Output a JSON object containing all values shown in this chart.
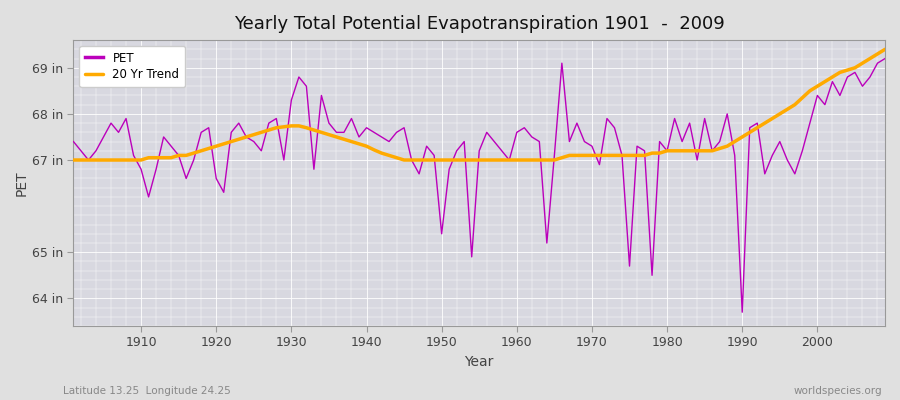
{
  "title": "Yearly Total Potential Evapotranspiration 1901  -  2009",
  "xlabel": "Year",
  "ylabel": "PET",
  "footnote_left": "Latitude 13.25  Longitude 24.25",
  "footnote_right": "worldspecies.org",
  "fig_bg_color": "#e0e0e0",
  "plot_bg_color": "#d8d8e0",
  "pet_color": "#bb00bb",
  "trend_color": "#ffaa00",
  "ylim": [
    63.4,
    69.6
  ],
  "yticks": [
    64,
    65,
    67,
    68,
    69
  ],
  "ytick_labels": [
    "64 in",
    "65 in",
    "67 in",
    "68 in",
    "69 in"
  ],
  "xticks": [
    1910,
    1920,
    1930,
    1940,
    1950,
    1960,
    1970,
    1980,
    1990,
    2000
  ],
  "years": [
    1901,
    1902,
    1903,
    1904,
    1905,
    1906,
    1907,
    1908,
    1909,
    1910,
    1911,
    1912,
    1913,
    1914,
    1915,
    1916,
    1917,
    1918,
    1919,
    1920,
    1921,
    1922,
    1923,
    1924,
    1925,
    1926,
    1927,
    1928,
    1929,
    1930,
    1931,
    1932,
    1933,
    1934,
    1935,
    1936,
    1937,
    1938,
    1939,
    1940,
    1941,
    1942,
    1943,
    1944,
    1945,
    1946,
    1947,
    1948,
    1949,
    1950,
    1951,
    1952,
    1953,
    1954,
    1955,
    1956,
    1957,
    1958,
    1959,
    1960,
    1961,
    1962,
    1963,
    1964,
    1965,
    1966,
    1967,
    1968,
    1969,
    1970,
    1971,
    1972,
    1973,
    1974,
    1975,
    1976,
    1977,
    1978,
    1979,
    1980,
    1981,
    1982,
    1983,
    1984,
    1985,
    1986,
    1987,
    1988,
    1989,
    1990,
    1991,
    1992,
    1993,
    1994,
    1995,
    1996,
    1997,
    1998,
    1999,
    2000,
    2001,
    2002,
    2003,
    2004,
    2005,
    2006,
    2007,
    2008,
    2009
  ],
  "pet": [
    67.4,
    67.2,
    67.0,
    67.2,
    67.5,
    67.8,
    67.6,
    67.9,
    67.1,
    66.8,
    66.2,
    66.8,
    67.5,
    67.3,
    67.1,
    66.6,
    67.0,
    67.6,
    67.7,
    66.6,
    66.3,
    67.6,
    67.8,
    67.5,
    67.4,
    67.2,
    67.8,
    67.9,
    67.0,
    68.3,
    68.8,
    68.6,
    66.8,
    68.4,
    67.8,
    67.6,
    67.6,
    67.9,
    67.5,
    67.7,
    67.6,
    67.5,
    67.4,
    67.6,
    67.7,
    67.0,
    66.7,
    67.3,
    67.1,
    65.4,
    66.8,
    67.2,
    67.4,
    64.9,
    67.2,
    67.6,
    67.4,
    67.2,
    67.0,
    67.6,
    67.7,
    67.5,
    67.4,
    65.2,
    67.1,
    69.1,
    67.4,
    67.8,
    67.4,
    67.3,
    66.9,
    67.9,
    67.7,
    67.1,
    64.7,
    67.3,
    67.2,
    64.5,
    67.4,
    67.2,
    67.9,
    67.4,
    67.8,
    67.0,
    67.9,
    67.2,
    67.4,
    68.0,
    67.1,
    63.7,
    67.7,
    67.8,
    66.7,
    67.1,
    67.4,
    67.0,
    66.7,
    67.2,
    67.8,
    68.4,
    68.2,
    68.7,
    68.4,
    68.8,
    68.9,
    68.6,
    68.8,
    69.1,
    69.2
  ],
  "trend": [
    67.0,
    67.0,
    67.0,
    67.0,
    67.0,
    67.0,
    67.0,
    67.0,
    67.0,
    67.0,
    67.05,
    67.05,
    67.05,
    67.05,
    67.1,
    67.1,
    67.15,
    67.2,
    67.25,
    67.3,
    67.35,
    67.4,
    67.45,
    67.5,
    67.55,
    67.6,
    67.65,
    67.7,
    67.72,
    67.74,
    67.74,
    67.7,
    67.65,
    67.6,
    67.55,
    67.5,
    67.45,
    67.4,
    67.35,
    67.3,
    67.22,
    67.15,
    67.1,
    67.05,
    67.0,
    67.0,
    67.0,
    67.0,
    67.0,
    67.0,
    67.0,
    67.0,
    67.0,
    67.0,
    67.0,
    67.0,
    67.0,
    67.0,
    67.0,
    67.0,
    67.0,
    67.0,
    67.0,
    67.0,
    67.0,
    67.05,
    67.1,
    67.1,
    67.1,
    67.1,
    67.1,
    67.1,
    67.1,
    67.1,
    67.1,
    67.1,
    67.1,
    67.15,
    67.15,
    67.2,
    67.2,
    67.2,
    67.2,
    67.2,
    67.2,
    67.2,
    67.25,
    67.3,
    67.4,
    67.5,
    67.6,
    67.7,
    67.8,
    67.9,
    68.0,
    68.1,
    68.2,
    68.35,
    68.5,
    68.6,
    68.7,
    68.8,
    68.9,
    68.95,
    69.0,
    69.1,
    69.2,
    69.3,
    69.4
  ]
}
